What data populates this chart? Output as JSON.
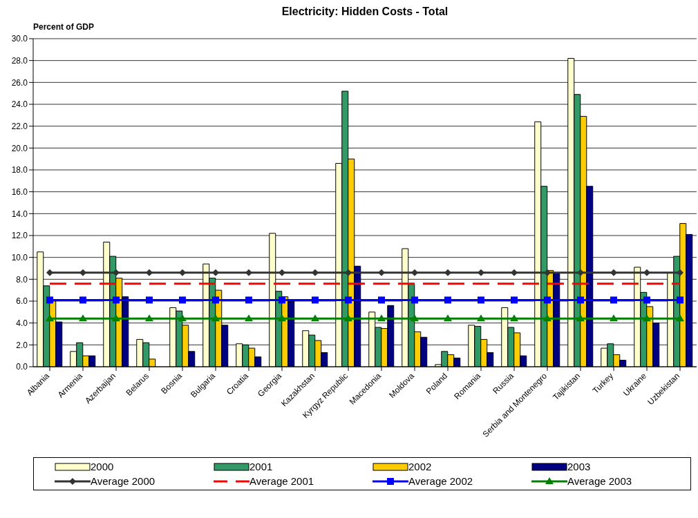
{
  "chart_data": {
    "type": "bar",
    "title": "Electricity: Hidden Costs - Total",
    "ylabel": "Percent of GDP",
    "categories": [
      "Albania",
      "Armenia",
      "Azerbaijan",
      "Belarus",
      "Bosnia",
      "Bulgaria",
      "Croatia",
      "Georgia",
      "Kazakhstan",
      "Kyrgyz Republic",
      "Macedonia",
      "Moldova",
      "Poland",
      "Romania",
      "Russia",
      "Serbia and Montenegro",
      "Tajikistan",
      "Turkey",
      "Ukraine",
      "Uzbekistan"
    ],
    "series": [
      {
        "name": "2000",
        "color": "#ffffcc",
        "values": [
          10.5,
          1.4,
          11.4,
          2.5,
          5.4,
          9.4,
          2.1,
          12.2,
          3.3,
          18.6,
          5.0,
          10.8,
          0.2,
          3.8,
          5.4,
          22.4,
          28.2,
          1.7,
          9.1,
          8.6
        ]
      },
      {
        "name": "2001",
        "color": "#339966",
        "values": [
          7.4,
          2.2,
          10.1,
          2.2,
          5.1,
          8.1,
          2.0,
          6.9,
          2.9,
          25.2,
          3.6,
          7.6,
          1.4,
          3.7,
          3.6,
          16.5,
          24.9,
          2.1,
          6.8,
          10.1
        ]
      },
      {
        "name": "2002",
        "color": "#ffcc00",
        "values": [
          6.0,
          1.0,
          8.1,
          0.7,
          3.8,
          7.0,
          1.7,
          6.4,
          2.4,
          19.0,
          3.5,
          3.2,
          1.1,
          2.5,
          3.1,
          8.8,
          22.9,
          1.1,
          5.5,
          13.1
        ]
      },
      {
        "name": "2003",
        "color": "#000080",
        "values": [
          4.1,
          1.0,
          6.4,
          null,
          1.4,
          3.8,
          0.9,
          6.0,
          1.3,
          9.2,
          5.6,
          2.7,
          0.8,
          1.3,
          1.0,
          8.6,
          16.5,
          0.6,
          4.0,
          12.1
        ]
      },
      {
        "name": "Average 2000",
        "type": "line",
        "color": "#333333",
        "marker": "diamond",
        "line_style": "solid",
        "values": [
          8.6,
          8.6,
          8.6,
          8.6,
          8.6,
          8.6,
          8.6,
          8.6,
          8.6,
          8.6,
          8.6,
          8.6,
          8.6,
          8.6,
          8.6,
          8.6,
          8.6,
          8.6,
          8.6,
          8.6
        ]
      },
      {
        "name": "Average 2001",
        "type": "line",
        "color": "#ff0000",
        "marker": "none",
        "line_style": "dashed",
        "values": [
          7.6,
          7.6,
          7.6,
          7.6,
          7.6,
          7.6,
          7.6,
          7.6,
          7.6,
          7.6,
          7.6,
          7.6,
          7.6,
          7.6,
          7.6,
          7.6,
          7.6,
          7.6,
          7.6,
          7.6
        ]
      },
      {
        "name": "Average 2002",
        "type": "line",
        "color": "#0000ff",
        "marker": "square",
        "line_style": "solid",
        "values": [
          6.1,
          6.1,
          6.1,
          6.1,
          6.1,
          6.1,
          6.1,
          6.1,
          6.1,
          6.1,
          6.1,
          6.1,
          6.1,
          6.1,
          6.1,
          6.1,
          6.1,
          6.1,
          6.1,
          6.1
        ]
      },
      {
        "name": "Average 2003",
        "type": "line",
        "color": "#008000",
        "marker": "triangle",
        "line_style": "solid",
        "values": [
          4.4,
          4.4,
          4.4,
          4.4,
          4.4,
          4.4,
          4.4,
          4.4,
          4.4,
          4.4,
          4.4,
          4.4,
          4.4,
          4.4,
          4.4,
          4.4,
          4.4,
          4.4,
          4.4,
          4.4
        ]
      }
    ],
    "ylim": [
      0,
      30
    ],
    "yticks": [
      {
        "value": 0,
        "label": "0.0"
      },
      {
        "value": 2,
        "label": "2.0"
      },
      {
        "value": 4,
        "label": "4.0"
      },
      {
        "value": 6,
        "label": "6.0"
      },
      {
        "value": 8,
        "label": "8.0"
      },
      {
        "value": 10,
        "label": "10.0"
      },
      {
        "value": 12,
        "label": "12.0"
      },
      {
        "value": 14,
        "label": "14.0"
      },
      {
        "value": 16,
        "label": "16.0"
      },
      {
        "value": 18,
        "label": "18.0"
      },
      {
        "value": 20,
        "label": "20.0"
      },
      {
        "value": 22,
        "label": "22.0"
      },
      {
        "value": 24,
        "label": "24.0"
      },
      {
        "value": 26,
        "label": "26.0"
      },
      {
        "value": 28,
        "label": "28.0"
      },
      {
        "value": 30,
        "label": "30.0"
      }
    ],
    "grid": "y",
    "legend": "bottom"
  }
}
